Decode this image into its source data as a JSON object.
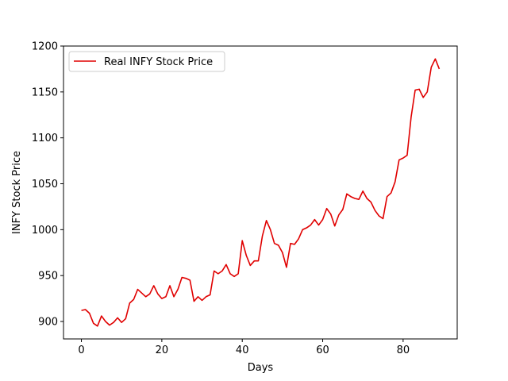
{
  "chart_data": {
    "type": "line",
    "title": "",
    "xlabel": "Days",
    "ylabel": "INFY Stock Price",
    "xlim": [
      -4.45,
      93.45
    ],
    "ylim": [
      881,
      1200
    ],
    "xticks": [
      0,
      20,
      40,
      60,
      80
    ],
    "yticks": [
      900,
      950,
      1000,
      1050,
      1100,
      1150,
      1200
    ],
    "grid": false,
    "legend_position": "top-left",
    "series": [
      {
        "name": "Real INFY Stock Price",
        "color": "#e00000",
        "x": [
          0,
          1,
          2,
          3,
          4,
          5,
          6,
          7,
          8,
          9,
          10,
          11,
          12,
          13,
          14,
          15,
          16,
          17,
          18,
          19,
          20,
          21,
          22,
          23,
          24,
          25,
          26,
          27,
          28,
          29,
          30,
          31,
          32,
          33,
          34,
          35,
          36,
          37,
          38,
          39,
          40,
          41,
          42,
          43,
          44,
          45,
          46,
          47,
          48,
          49,
          50,
          51,
          52,
          53,
          54,
          55,
          56,
          57,
          58,
          59,
          60,
          61,
          62,
          63,
          64,
          65,
          66,
          67,
          68,
          69,
          70,
          71,
          72,
          73,
          74,
          75,
          76,
          77,
          78,
          79,
          80,
          81,
          82,
          83,
          84,
          85,
          86,
          87,
          88,
          89
        ],
        "values": [
          912,
          913,
          909,
          898,
          895,
          906,
          900,
          896,
          899,
          904,
          899,
          903,
          920,
          924,
          935,
          931,
          927,
          930,
          939,
          930,
          925,
          927,
          939,
          927,
          935,
          948,
          947,
          945,
          922,
          927,
          923,
          927,
          929,
          955,
          952,
          955,
          962,
          952,
          949,
          952,
          988,
          972,
          961,
          966,
          966,
          993,
          1010,
          1000,
          985,
          983,
          975,
          959,
          985,
          984,
          990,
          1000,
          1002,
          1005,
          1011,
          1005,
          1011,
          1023,
          1017,
          1004,
          1016,
          1022,
          1039,
          1036,
          1034,
          1033,
          1042,
          1034,
          1030,
          1021,
          1015,
          1012,
          1036,
          1040,
          1052,
          1076,
          1078,
          1081,
          1123,
          1152,
          1153,
          1144,
          1150,
          1177,
          1186,
          1175
        ]
      }
    ]
  }
}
